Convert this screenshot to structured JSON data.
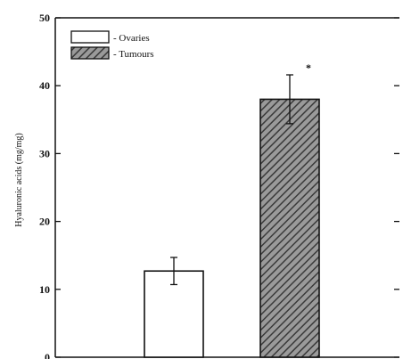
{
  "chart_data": {
    "type": "bar",
    "categories": [
      "Ovaries",
      "Tumours"
    ],
    "values": [
      12.7,
      38.0
    ],
    "errors": [
      2.0,
      3.6
    ],
    "significance": [
      "",
      "*"
    ],
    "bar_styles": [
      "open",
      "hatched"
    ],
    "ylabel": "Hyaluronic acids (mg/mg)",
    "xlabel": "",
    "ylim": [
      0,
      50
    ],
    "yticks": [
      0,
      10,
      20,
      30,
      40,
      50
    ],
    "legend": {
      "position": "top-left",
      "entries": [
        "- Ovaries",
        "- Tumours"
      ]
    },
    "grid": false
  },
  "colors": {
    "axis": "#111111",
    "bar_open": "#ffffff",
    "bar_hatch_bg": "#9a9a9a",
    "bar_hatch_line": "#3a3a3a"
  }
}
